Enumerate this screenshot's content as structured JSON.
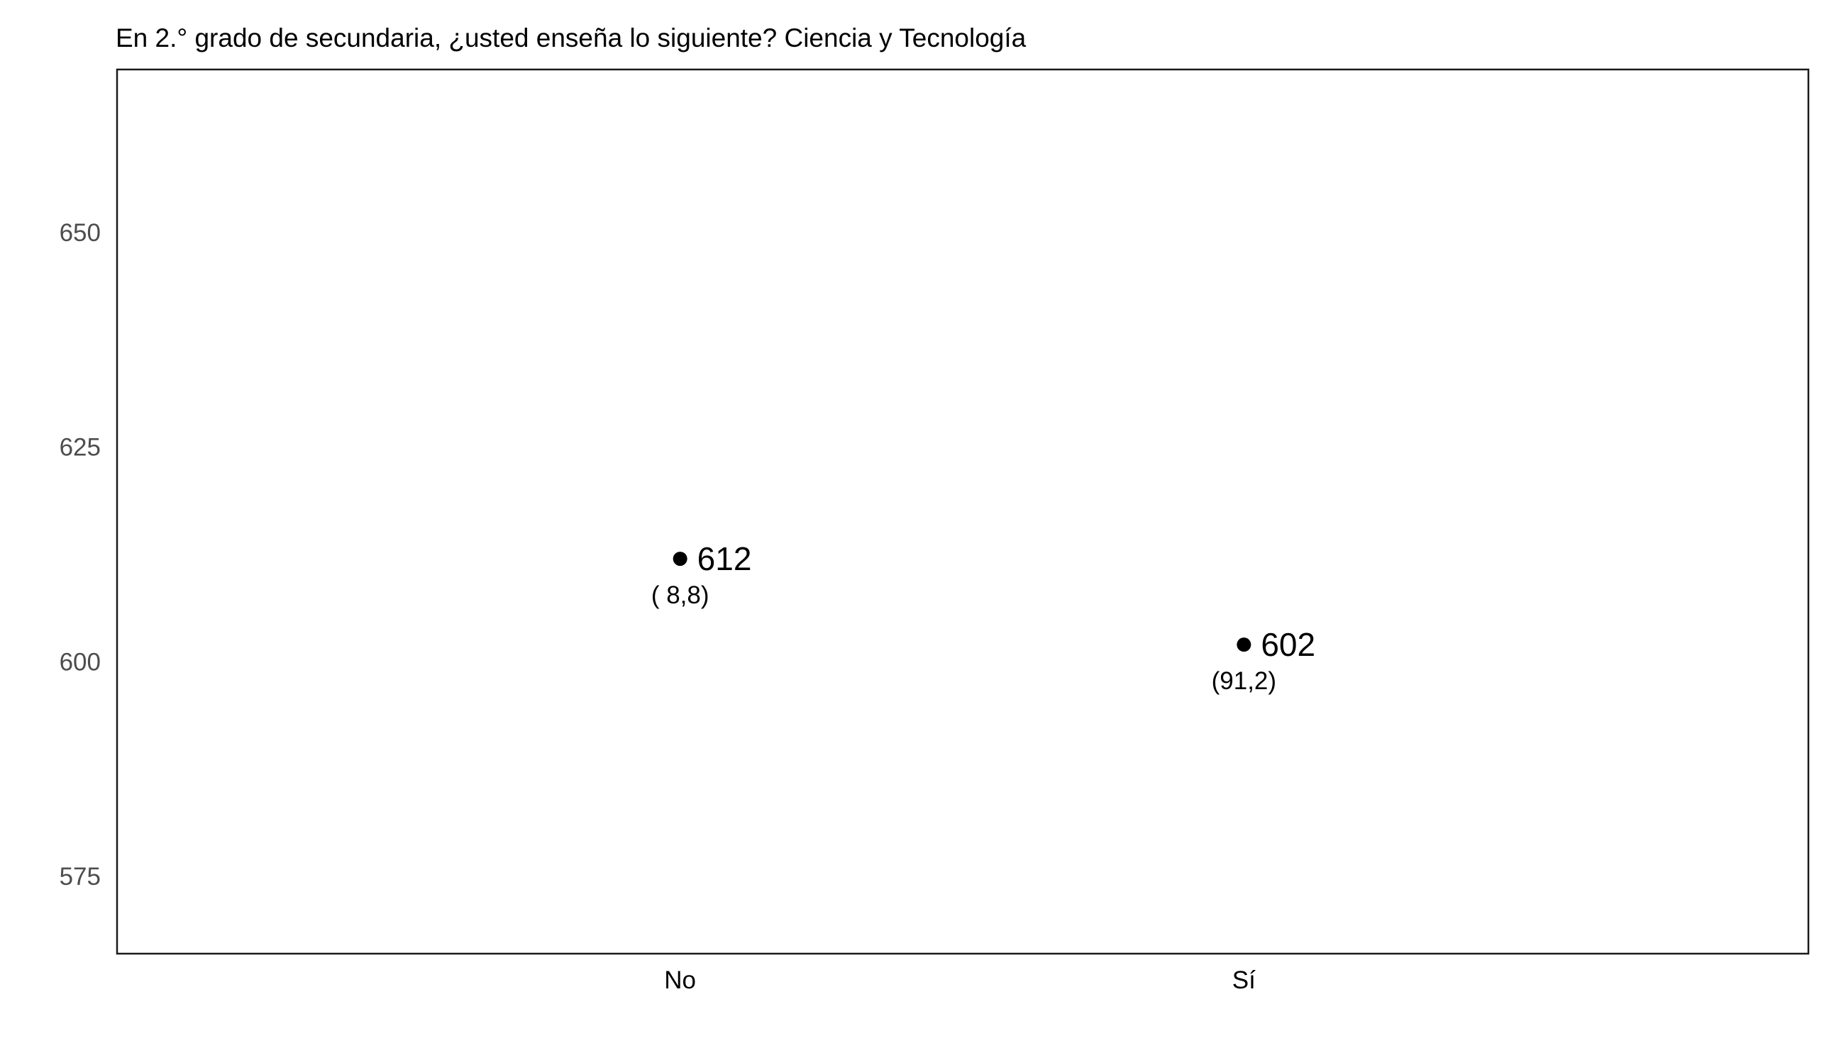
{
  "chart_data": {
    "type": "scatter",
    "title": "En 2.° grado de secundaria, ¿usted enseña lo siguiente? Ciencia y Tecnología",
    "xlabel": "",
    "ylabel": "",
    "categories": [
      "No",
      "Sí"
    ],
    "values": [
      612,
      602
    ],
    "value_labels": [
      "612",
      "602"
    ],
    "percent_labels": [
      "( 8,8)",
      "(91,2)"
    ],
    "ylim": [
      566,
      669
    ],
    "yticks": [
      575,
      600,
      625,
      650
    ],
    "ytick_labels": [
      "575",
      "600",
      "625",
      "650"
    ],
    "grid": false,
    "legend": "none",
    "colors": {
      "point": "#000000",
      "axis": "#000000",
      "tick_label": "#4d4d4d",
      "background": "#ffffff"
    }
  }
}
